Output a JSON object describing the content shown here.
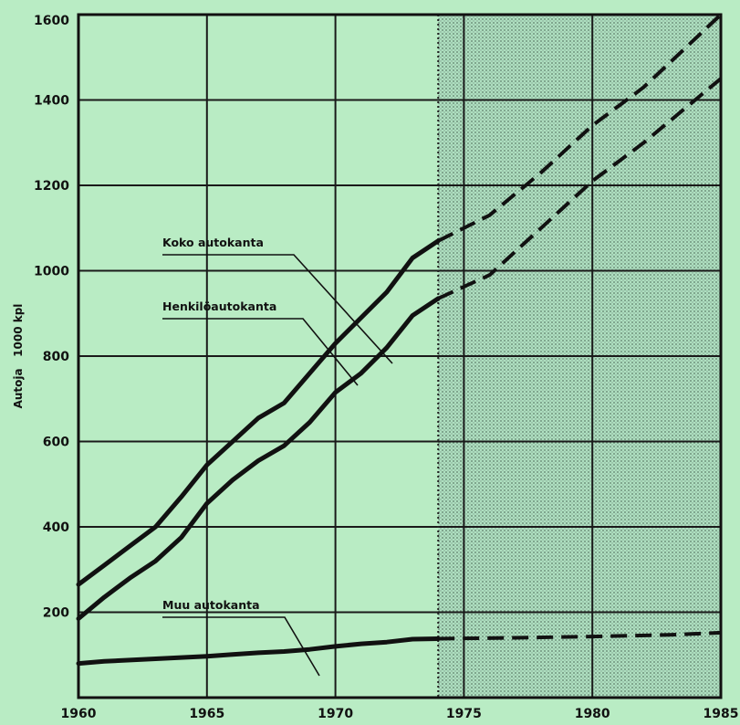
{
  "chart_data": {
    "type": "line",
    "title": "",
    "xlabel": "",
    "ylabel": "Autoja   1000 kpl",
    "xlim": [
      1960,
      1985
    ],
    "ylim": [
      0,
      1600
    ],
    "x_ticks": [
      "1960",
      "1965",
      "1970",
      "1975",
      "1980",
      "1985"
    ],
    "y_ticks": [
      "200",
      "400",
      "600",
      "800",
      "1000",
      "1200",
      "1400",
      "1600"
    ],
    "grid": true,
    "forecast_region": {
      "from": 1974,
      "to": 1985,
      "style": "shaded, dashed lines"
    },
    "series": [
      {
        "name": "Koko autokanta",
        "color": "#111111",
        "actual": [
          [
            1960,
            265
          ],
          [
            1961,
            310
          ],
          [
            1962,
            355
          ],
          [
            1963,
            400
          ],
          [
            1964,
            470
          ],
          [
            1965,
            545
          ],
          [
            1966,
            600
          ],
          [
            1967,
            655
          ],
          [
            1968,
            690
          ],
          [
            1969,
            760
          ],
          [
            1970,
            830
          ],
          [
            1971,
            890
          ],
          [
            1972,
            950
          ],
          [
            1973,
            1030
          ],
          [
            1974,
            1070
          ]
        ],
        "forecast": [
          [
            1974,
            1070
          ],
          [
            1976,
            1130
          ],
          [
            1978,
            1230
          ],
          [
            1980,
            1340
          ],
          [
            1982,
            1430
          ],
          [
            1985,
            1600
          ]
        ]
      },
      {
        "name": "Henkilöautokanta",
        "color": "#111111",
        "actual": [
          [
            1960,
            185
          ],
          [
            1961,
            235
          ],
          [
            1962,
            280
          ],
          [
            1963,
            320
          ],
          [
            1964,
            375
          ],
          [
            1965,
            455
          ],
          [
            1966,
            510
          ],
          [
            1967,
            555
          ],
          [
            1968,
            590
          ],
          [
            1969,
            645
          ],
          [
            1970,
            715
          ],
          [
            1971,
            760
          ],
          [
            1972,
            820
          ],
          [
            1973,
            895
          ],
          [
            1974,
            935
          ]
        ],
        "forecast": [
          [
            1974,
            935
          ],
          [
            1976,
            990
          ],
          [
            1978,
            1100
          ],
          [
            1980,
            1210
          ],
          [
            1982,
            1300
          ],
          [
            1985,
            1450
          ]
        ]
      },
      {
        "name": "Muu autokanta",
        "color": "#111111",
        "actual": [
          [
            1960,
            80
          ],
          [
            1961,
            85
          ],
          [
            1962,
            88
          ],
          [
            1963,
            91
          ],
          [
            1964,
            94
          ],
          [
            1965,
            97
          ],
          [
            1966,
            101
          ],
          [
            1967,
            105
          ],
          [
            1968,
            108
          ],
          [
            1969,
            113
          ],
          [
            1970,
            120
          ],
          [
            1971,
            126
          ],
          [
            1972,
            130
          ],
          [
            1973,
            137
          ],
          [
            1974,
            138
          ]
        ],
        "forecast": [
          [
            1974,
            138
          ],
          [
            1977,
            140
          ],
          [
            1980,
            143
          ],
          [
            1983,
            147
          ],
          [
            1985,
            152
          ]
        ]
      }
    ]
  }
}
